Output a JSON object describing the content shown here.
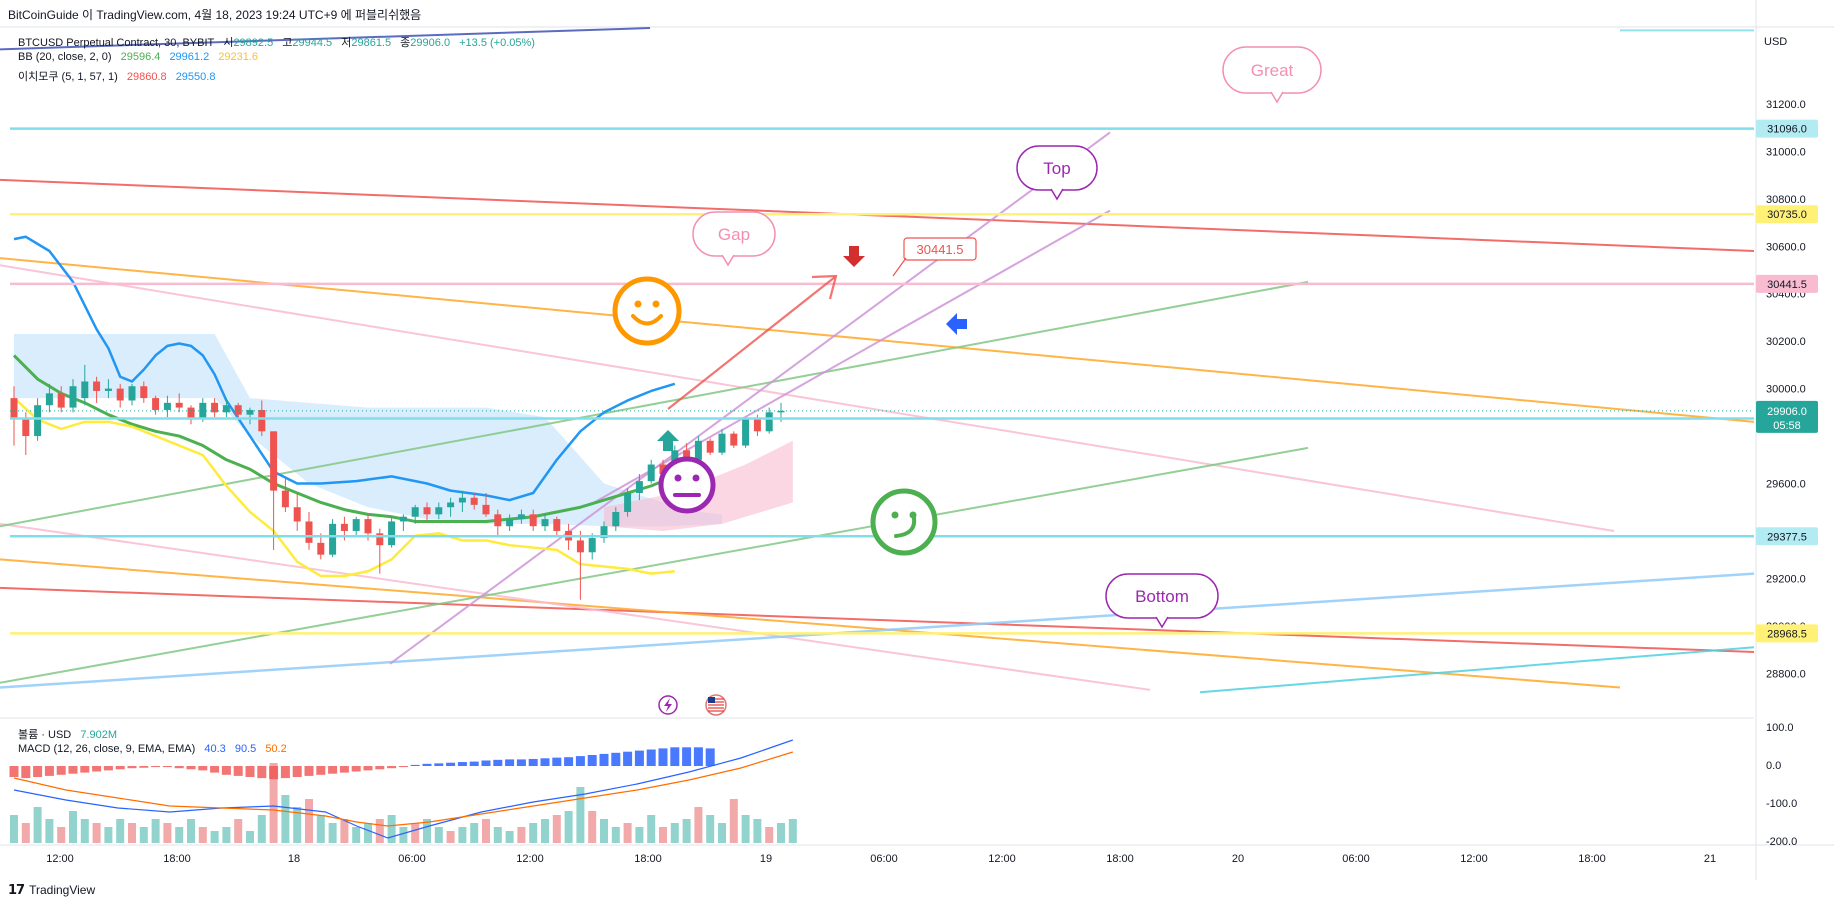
{
  "header": {
    "attribution": "BitCoinGuide 이 TradingView.com, 4월 18, 2023 19:24 UTC+9 에 퍼블리쉬했음"
  },
  "legend": {
    "symbol": "BTCUSD Perpetual Contract, 30, BYBIT",
    "ohlc": {
      "o_label": "시",
      "o": "29892.5",
      "h_label": "고",
      "h": "29944.5",
      "l_label": "저",
      "l": "29861.5",
      "c_label": "종",
      "c": "29906.0",
      "change": "+13.5 (+0.05%)"
    },
    "bb": {
      "label": "BB (20, close, 2, 0)",
      "basis": "29596.4",
      "upper": "29961.2",
      "lower": "29231.6"
    },
    "ichimoku": {
      "label": "이치모쿠 (5, 1, 57, 1)",
      "v1": "29860.8",
      "v2": "29550.8"
    },
    "volume": {
      "label": "볼륨 · USD",
      "value": "7.902M"
    },
    "macd": {
      "label": "MACD (12, 26, close, 9, EMA, EMA)",
      "v1": "40.3",
      "v2": "90.5",
      "v3": "50.2"
    }
  },
  "annotations": {
    "great": "Great",
    "top": "Top",
    "gap": "Gap",
    "bottom": "Bottom",
    "price_callout": "30441.5"
  },
  "colors": {
    "up": "#26a69a",
    "down": "#ef5350",
    "bb_basis": "#4caf50",
    "bb_upper": "#2196f3",
    "bb_lower": "#ffeb3b",
    "teal_level": "#80deea",
    "yellow_level": "#fff176",
    "pink_level": "#f8bbd0",
    "orange": "#ffa726",
    "purple": "#9c27b0",
    "last_price": "#26a69a"
  },
  "chart_data": {
    "type": "line",
    "symbol": "BTCUSD Perpetual Contract",
    "exchange": "BYBIT",
    "interval": "30",
    "y_axis": {
      "currency": "USD",
      "ticks": [
        28800,
        29000,
        29200,
        29400,
        29600,
        29800,
        30000,
        30200,
        30400,
        30600,
        30800,
        31000,
        31200
      ],
      "range": [
        28620,
        31520
      ]
    },
    "price_labels": [
      "USD",
      "31200.0",
      "31000.0",
      "30800.0",
      "30600.0",
      "30400.0",
      "30200.0",
      "30000.0",
      "29600.0",
      "29200.0",
      "29000.0",
      "28800.0"
    ],
    "x_axis": {
      "ticks": [
        "12:00",
        "18:00",
        "18",
        "06:00",
        "12:00",
        "18:00",
        "19",
        "06:00",
        "12:00",
        "18:00",
        "20",
        "06:00",
        "12:00",
        "18:00",
        "21"
      ]
    },
    "horizontal_levels": [
      {
        "value": 31096.0,
        "label": "31096.0",
        "color": "#80deea"
      },
      {
        "value": 30735.0,
        "label": "30735.0",
        "color": "#fff176"
      },
      {
        "value": 30441.5,
        "label": "30441.5",
        "color": "#f8bbd0"
      },
      {
        "value": 29874.0,
        "label": "29874.0",
        "color": "#80deea"
      },
      {
        "value": 29377.5,
        "label": "29377.5",
        "color": "#80deea"
      },
      {
        "value": 28968.5,
        "label": "28968.5",
        "color": "#fff176"
      }
    ],
    "last_price": {
      "value": 29906.0,
      "label": "29906.0",
      "countdown": "05:58"
    },
    "bb_upper": [
      [
        0,
        30630
      ],
      [
        1,
        30640
      ],
      [
        3,
        30580
      ],
      [
        5,
        30450
      ],
      [
        7,
        30250
      ],
      [
        8,
        30170
      ],
      [
        9,
        30050
      ],
      [
        10,
        30030
      ],
      [
        11,
        30080
      ],
      [
        12,
        30140
      ],
      [
        13,
        30180
      ],
      [
        14,
        30190
      ],
      [
        15,
        30180
      ],
      [
        16,
        30140
      ],
      [
        17,
        30060
      ],
      [
        18,
        29950
      ],
      [
        20,
        29800
      ],
      [
        22,
        29650
      ],
      [
        24,
        29600
      ],
      [
        26,
        29600
      ],
      [
        29,
        29610
      ],
      [
        32,
        29630
      ],
      [
        35,
        29600
      ],
      [
        37,
        29570
      ],
      [
        40,
        29550
      ],
      [
        42,
        29530
      ],
      [
        44,
        29560
      ],
      [
        46,
        29700
      ],
      [
        48,
        29820
      ],
      [
        50,
        29900
      ],
      [
        52,
        29950
      ],
      [
        54,
        29990
      ],
      [
        56,
        30020
      ]
    ],
    "bb_basis": [
      [
        0,
        30140
      ],
      [
        2,
        30040
      ],
      [
        4,
        29980
      ],
      [
        6,
        29940
      ],
      [
        8,
        29890
      ],
      [
        10,
        29850
      ],
      [
        12,
        29820
      ],
      [
        14,
        29800
      ],
      [
        16,
        29760
      ],
      [
        18,
        29700
      ],
      [
        20,
        29660
      ],
      [
        22,
        29600
      ],
      [
        24,
        29560
      ],
      [
        26,
        29520
      ],
      [
        28,
        29490
      ],
      [
        30,
        29470
      ],
      [
        32,
        29460
      ],
      [
        34,
        29440
      ],
      [
        36,
        29440
      ],
      [
        38,
        29440
      ],
      [
        40,
        29440
      ],
      [
        42,
        29450
      ],
      [
        44,
        29460
      ],
      [
        46,
        29480
      ],
      [
        48,
        29500
      ],
      [
        50,
        29530
      ],
      [
        52,
        29560
      ],
      [
        54,
        29590
      ],
      [
        56,
        29630
      ]
    ],
    "bb_lower": [
      [
        0,
        29960
      ],
      [
        2,
        29870
      ],
      [
        4,
        29830
      ],
      [
        6,
        29860
      ],
      [
        8,
        29860
      ],
      [
        10,
        29840
      ],
      [
        12,
        29800
      ],
      [
        14,
        29760
      ],
      [
        16,
        29720
      ],
      [
        18,
        29590
      ],
      [
        20,
        29480
      ],
      [
        22,
        29400
      ],
      [
        24,
        29270
      ],
      [
        26,
        29210
      ],
      [
        28,
        29210
      ],
      [
        30,
        29230
      ],
      [
        32,
        29280
      ],
      [
        34,
        29380
      ],
      [
        36,
        29390
      ],
      [
        38,
        29360
      ],
      [
        40,
        29360
      ],
      [
        42,
        29340
      ],
      [
        44,
        29330
      ],
      [
        46,
        29320
      ],
      [
        48,
        29260
      ],
      [
        50,
        29250
      ],
      [
        52,
        29240
      ],
      [
        54,
        29220
      ],
      [
        56,
        29230
      ]
    ],
    "candles": [
      [
        0,
        29960,
        30010,
        29760,
        29870
      ],
      [
        1,
        29870,
        29900,
        29720,
        29800
      ],
      [
        2,
        29800,
        29960,
        29780,
        29930
      ],
      [
        3,
        29930,
        30020,
        29900,
        29980
      ],
      [
        4,
        29980,
        30010,
        29900,
        29920
      ],
      [
        5,
        29920,
        30040,
        29900,
        30010
      ],
      [
        6,
        29960,
        30100,
        29930,
        30030
      ],
      [
        7,
        30030,
        30050,
        29940,
        29990
      ],
      [
        8,
        29990,
        30040,
        29960,
        30000
      ],
      [
        9,
        30000,
        30020,
        29920,
        29950
      ],
      [
        10,
        29950,
        30020,
        29930,
        30010
      ],
      [
        11,
        30010,
        30030,
        29940,
        29960
      ],
      [
        12,
        29960,
        29970,
        29890,
        29910
      ],
      [
        13,
        29910,
        29970,
        29880,
        29940
      ],
      [
        14,
        29940,
        29980,
        29900,
        29920
      ],
      [
        15,
        29920,
        29930,
        29850,
        29870
      ],
      [
        16,
        29870,
        29960,
        29860,
        29940
      ],
      [
        17,
        29940,
        29960,
        29880,
        29900
      ],
      [
        18,
        29900,
        29960,
        29880,
        29930
      ],
      [
        19,
        29930,
        29940,
        29870,
        29890
      ],
      [
        20,
        29890,
        29920,
        29850,
        29910
      ],
      [
        21,
        29910,
        29950,
        29800,
        29820
      ],
      [
        22,
        29820,
        29820,
        29320,
        29570
      ],
      [
        23,
        29570,
        29620,
        29480,
        29500
      ],
      [
        24,
        29500,
        29560,
        29400,
        29440
      ],
      [
        25,
        29440,
        29480,
        29320,
        29350
      ],
      [
        26,
        29350,
        29390,
        29280,
        29300
      ],
      [
        27,
        29300,
        29450,
        29290,
        29430
      ],
      [
        28,
        29430,
        29460,
        29360,
        29400
      ],
      [
        29,
        29400,
        29460,
        29380,
        29450
      ],
      [
        30,
        29450,
        29470,
        29360,
        29390
      ],
      [
        31,
        29390,
        29410,
        29220,
        29340
      ],
      [
        32,
        29340,
        29460,
        29330,
        29440
      ],
      [
        33,
        29440,
        29470,
        29400,
        29460
      ],
      [
        34,
        29460,
        29510,
        29430,
        29500
      ],
      [
        35,
        29500,
        29520,
        29440,
        29470
      ],
      [
        36,
        29470,
        29520,
        29450,
        29500
      ],
      [
        37,
        29500,
        29540,
        29460,
        29520
      ],
      [
        38,
        29520,
        29570,
        29480,
        29540
      ],
      [
        39,
        29540,
        29560,
        29490,
        29510
      ],
      [
        40,
        29510,
        29560,
        29460,
        29470
      ],
      [
        41,
        29470,
        29490,
        29380,
        29420
      ],
      [
        42,
        29420,
        29470,
        29400,
        29450
      ],
      [
        43,
        29450,
        29490,
        29430,
        29470
      ],
      [
        44,
        29470,
        29490,
        29400,
        29420
      ],
      [
        45,
        29420,
        29470,
        29400,
        29450
      ],
      [
        46,
        29450,
        29460,
        29380,
        29400
      ],
      [
        47,
        29400,
        29430,
        29320,
        29360
      ],
      [
        48,
        29360,
        29400,
        29110,
        29310
      ],
      [
        49,
        29310,
        29390,
        29280,
        29370
      ],
      [
        50,
        29370,
        29440,
        29350,
        29420
      ]
    ],
    "volume_bars": [
      0.35,
      0.25,
      0.45,
      0.3,
      0.2,
      0.4,
      0.3,
      0.25,
      0.2,
      0.3,
      0.25,
      0.2,
      0.3,
      0.25,
      0.2,
      0.3,
      0.2,
      0.15,
      0.2,
      0.3,
      0.15,
      0.35,
      1.0,
      0.6,
      0.45,
      0.55,
      0.35,
      0.25,
      0.3,
      0.2,
      0.25,
      0.3,
      0.35,
      0.2,
      0.25,
      0.3,
      0.2,
      0.15,
      0.2,
      0.25,
      0.3,
      0.2,
      0.15,
      0.2,
      0.25,
      0.3,
      0.35,
      0.4,
      0.7,
      0.4,
      0.3,
      0.2,
      0.25,
      0.2,
      0.35,
      0.2,
      0.25,
      0.3,
      0.45,
      0.35,
      0.25,
      0.55,
      0.35,
      0.3,
      0.2,
      0.25,
      0.3
    ],
    "macd_histogram": [
      -0.5,
      -0.55,
      -0.5,
      -0.45,
      -0.4,
      -0.35,
      -0.3,
      -0.25,
      -0.2,
      -0.15,
      -0.1,
      -0.08,
      -0.05,
      -0.05,
      -0.1,
      -0.15,
      -0.2,
      -0.3,
      -0.4,
      -0.45,
      -0.5,
      -0.55,
      -0.6,
      -0.55,
      -0.5,
      -0.45,
      -0.4,
      -0.35,
      -0.3,
      -0.25,
      -0.2,
      -0.15,
      -0.1,
      -0.05,
      0.05,
      0.1,
      0.12,
      0.15,
      0.18,
      0.2,
      0.25,
      0.28,
      0.3,
      0.3,
      0.32,
      0.35,
      0.38,
      0.4,
      0.45,
      0.5,
      0.55,
      0.6,
      0.65,
      0.7,
      0.75,
      0.8,
      0.85,
      0.85,
      0.85,
      0.8
    ],
    "macd_axis_ticks": [
      "100.0",
      "0.0",
      "-100.0",
      "-200.0"
    ]
  }
}
